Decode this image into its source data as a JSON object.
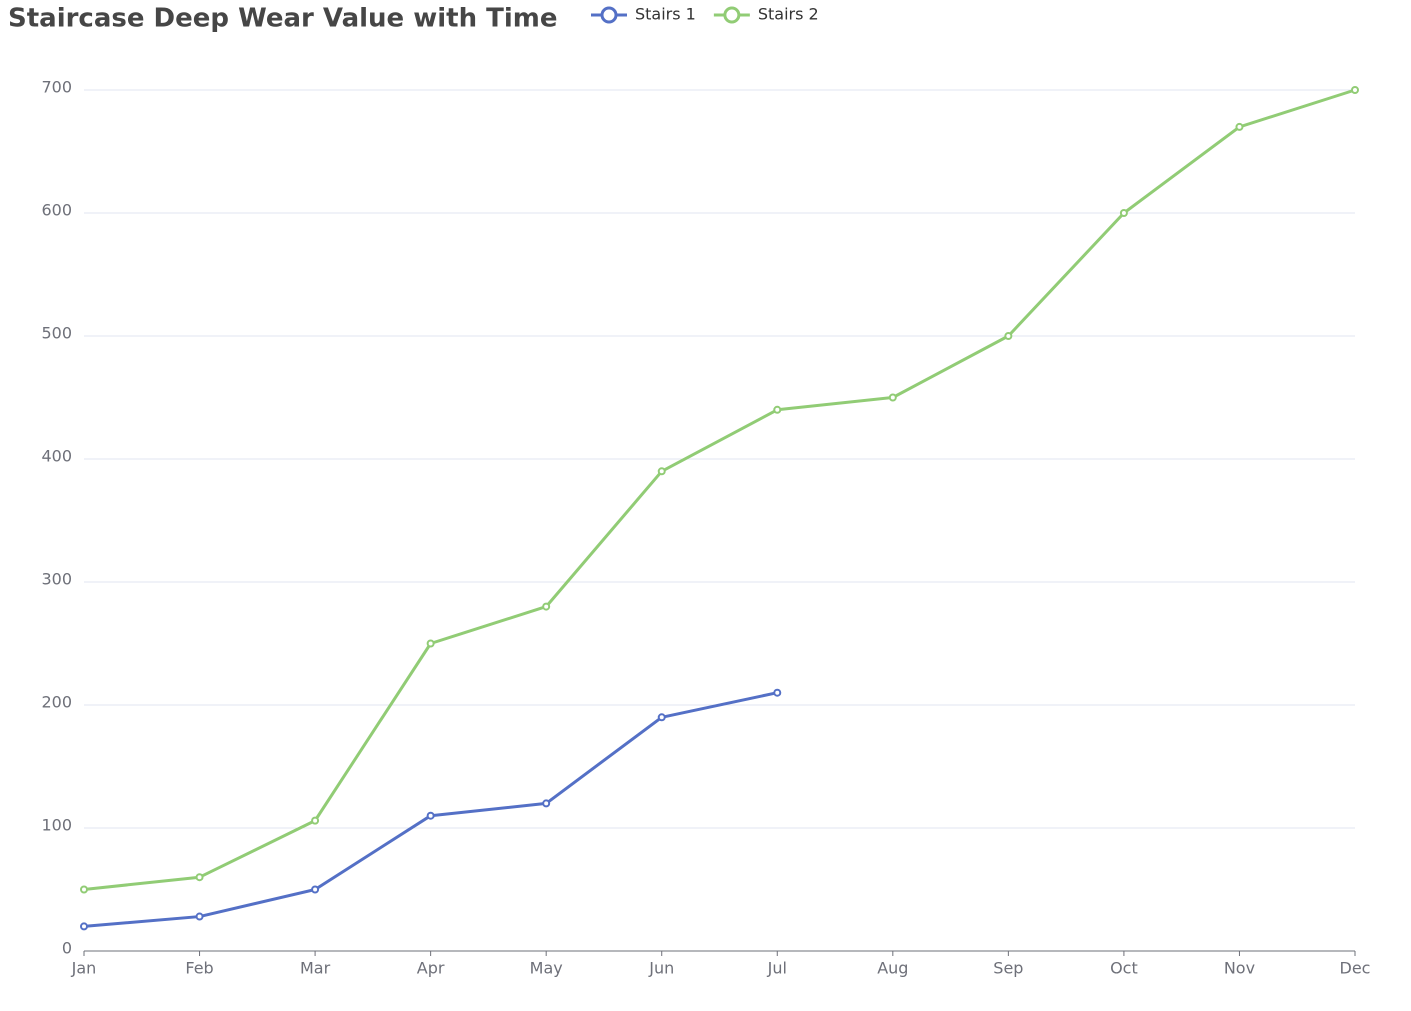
{
  "chart_data": {
    "type": "line",
    "title": "Staircase Deep Wear Value with Time",
    "categories": [
      "Jan",
      "Feb",
      "Mar",
      "Apr",
      "May",
      "Jun",
      "Jul",
      "Aug",
      "Sep",
      "Oct",
      "Nov",
      "Dec"
    ],
    "series": [
      {
        "name": "Stairs 1",
        "color": "#5470c6",
        "values": [
          20,
          28,
          50,
          110,
          120,
          190,
          210,
          null,
          null,
          null,
          null,
          null
        ]
      },
      {
        "name": "Stairs 2",
        "color": "#91cc75",
        "values": [
          50,
          60,
          106,
          250,
          280,
          390,
          440,
          450,
          500,
          600,
          670,
          700
        ]
      }
    ],
    "ylim": [
      0,
      700
    ],
    "yticks": [
      0,
      100,
      200,
      300,
      400,
      500,
      600,
      700
    ],
    "grid": true,
    "legend": "top"
  }
}
